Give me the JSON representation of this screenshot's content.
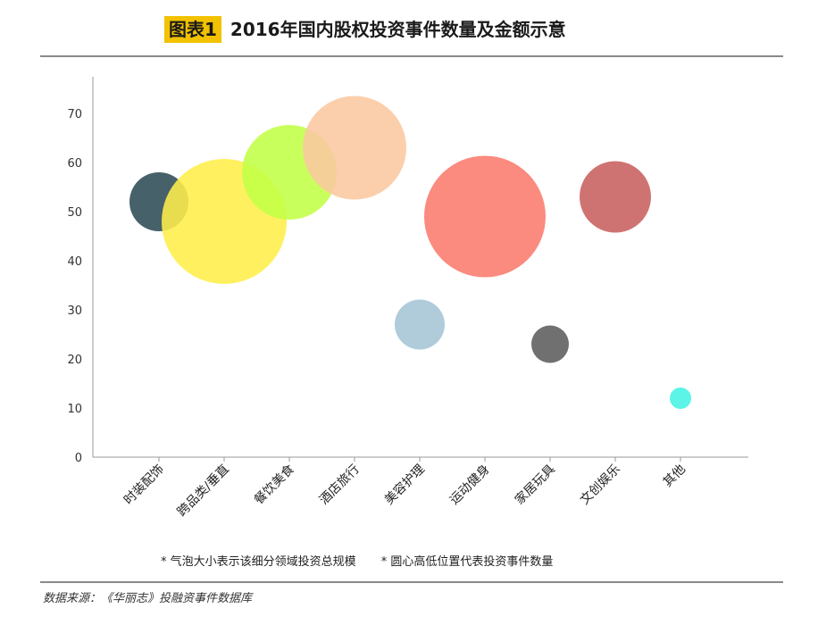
{
  "header": {
    "tag": "图表1",
    "title": "2016年国内股权投资事件数量及金额示意"
  },
  "notes": [
    "* 气泡大小表示该细分领域投资总规模",
    "* 圆心高低位置代表投资事件数量"
  ],
  "source": "数据来源：《华丽志》投融资事件数据库",
  "chart_data": {
    "type": "scatter",
    "subtype": "bubble",
    "categories": [
      "时装配饰",
      "跨品类/垂直",
      "餐饮美食",
      "酒店旅行",
      "美容护理",
      "运动健身",
      "家居玩具",
      "文创娱乐",
      "其他"
    ],
    "values": [
      52,
      48,
      58,
      63,
      27,
      49,
      23,
      53,
      12
    ],
    "bubble_size": [
      33,
      70,
      53,
      58,
      28,
      68,
      21,
      40,
      12
    ],
    "colors": [
      "#2c4b55",
      "#ffee4a",
      "#c2ff45",
      "#fbc8a0",
      "#a5c5d6",
      "#fa7a6d",
      "#5c5c5c",
      "#c8605f",
      "#44f2e2"
    ],
    "opacity": 0.88,
    "yticks": [
      0,
      10,
      20,
      30,
      40,
      50,
      60,
      70
    ],
    "ylim": [
      0,
      70
    ],
    "grid": false,
    "legend": "none"
  }
}
